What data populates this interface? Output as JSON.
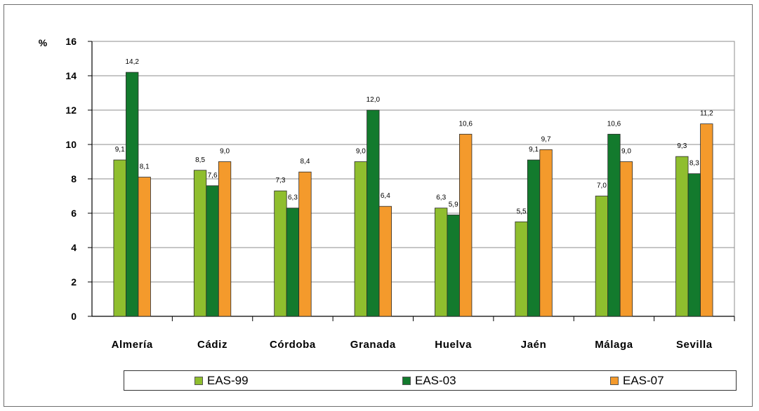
{
  "chart_data": {
    "type": "bar",
    "ylabel": "%",
    "ylim": [
      0,
      16
    ],
    "yticks": [
      0,
      2,
      4,
      6,
      8,
      10,
      12,
      14,
      16
    ],
    "grid": true,
    "legend_position": "bottom",
    "categories": [
      "Almería",
      "Cádiz",
      "Córdoba",
      "Granada",
      "Huelva",
      "Jaén",
      "Málaga",
      "Sevilla"
    ],
    "series": [
      {
        "name": "EAS-99",
        "color": "#8fbe2e",
        "values": [
          9.1,
          8.5,
          7.3,
          9.0,
          6.3,
          5.5,
          7.0,
          9.3
        ],
        "labels": [
          "9,1",
          "8,5",
          "7,3",
          "9,0",
          "6,3",
          "5,5",
          "7,0",
          "9,3"
        ]
      },
      {
        "name": "EAS-03",
        "color": "#137a2d",
        "values": [
          14.2,
          7.6,
          6.3,
          12.0,
          5.9,
          9.1,
          10.6,
          8.3
        ],
        "labels": [
          "14,2",
          "7,6",
          "6,3",
          "12,0",
          "5,9",
          "9,1",
          "10,6",
          "8,3"
        ]
      },
      {
        "name": "EAS-07",
        "color": "#f49a2c",
        "values": [
          8.1,
          9.0,
          8.4,
          6.4,
          10.6,
          9.7,
          9.0,
          11.2
        ],
        "labels": [
          "8,1",
          "9,0",
          "8,4",
          "6,4",
          "10,6",
          "9,7",
          "9,0",
          "11,2"
        ]
      }
    ]
  }
}
